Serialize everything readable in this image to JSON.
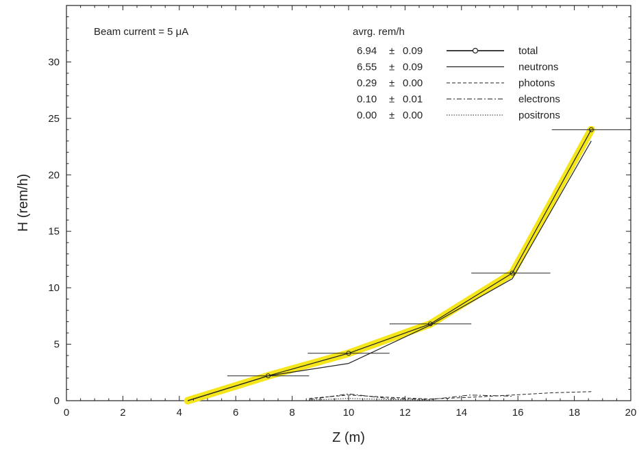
{
  "chart_data": {
    "type": "line",
    "xlabel": "Z (m)",
    "ylabel": "H (rem/h)",
    "xlim": [
      0,
      20
    ],
    "ylim": [
      0,
      35
    ],
    "xticks": [
      0,
      2,
      4,
      6,
      8,
      10,
      12,
      14,
      16,
      18,
      20
    ],
    "yticks": [
      0,
      5,
      10,
      15,
      20,
      25,
      30
    ],
    "grid": false,
    "annotation": "Beam current = 5 μA",
    "legend": {
      "placement": "top-right",
      "header": "avrg. rem/h",
      "pm": "±",
      "entries": [
        {
          "value": "6.94",
          "error": "0.09",
          "name": "total",
          "style": "solid-with-markers"
        },
        {
          "value": "6.55",
          "error": "0.09",
          "name": "neutrons",
          "style": "solid"
        },
        {
          "value": "0.29",
          "error": "0.00",
          "name": "photons",
          "style": "dashed"
        },
        {
          "value": "0.10",
          "error": "0.01",
          "name": "electrons",
          "style": "dash-dot"
        },
        {
          "value": "0.00",
          "error": "0.00",
          "name": "positrons",
          "style": "dotted"
        }
      ]
    },
    "series": [
      {
        "name": "total",
        "x": [
          4.3,
          7.15,
          10.0,
          12.9,
          15.8,
          18.6
        ],
        "y": [
          0.0,
          2.2,
          4.2,
          6.8,
          11.3,
          24.0
        ],
        "xerr_low": [
          null,
          1.45,
          1.45,
          1.45,
          1.45,
          1.4
        ],
        "xerr_high": [
          null,
          1.45,
          1.45,
          1.45,
          1.35,
          1.4
        ],
        "highlight_color": "#f5e51b"
      },
      {
        "name": "neutrons",
        "x": [
          4.3,
          7.15,
          10.0,
          12.9,
          15.8,
          18.6
        ],
        "y": [
          0.0,
          2.2,
          3.3,
          6.7,
          10.8,
          23.0
        ]
      },
      {
        "name": "photons",
        "x": [
          8.6,
          10.0,
          11.4,
          12.9,
          14.3,
          15.8,
          17.2,
          18.6
        ],
        "y": [
          0.2,
          0.5,
          0.3,
          0.15,
          0.3,
          0.5,
          0.7,
          0.8
        ]
      },
      {
        "name": "electrons",
        "x": [
          8.6,
          10.0,
          11.4,
          12.9,
          14.3,
          15.8
        ],
        "y": [
          0.1,
          0.6,
          0.2,
          0.1,
          0.5,
          0.4
        ]
      },
      {
        "name": "positrons",
        "x": [
          8.6,
          10.0,
          11.4,
          12.9
        ],
        "y": [
          0.05,
          0.2,
          0.1,
          0.05
        ]
      }
    ]
  }
}
